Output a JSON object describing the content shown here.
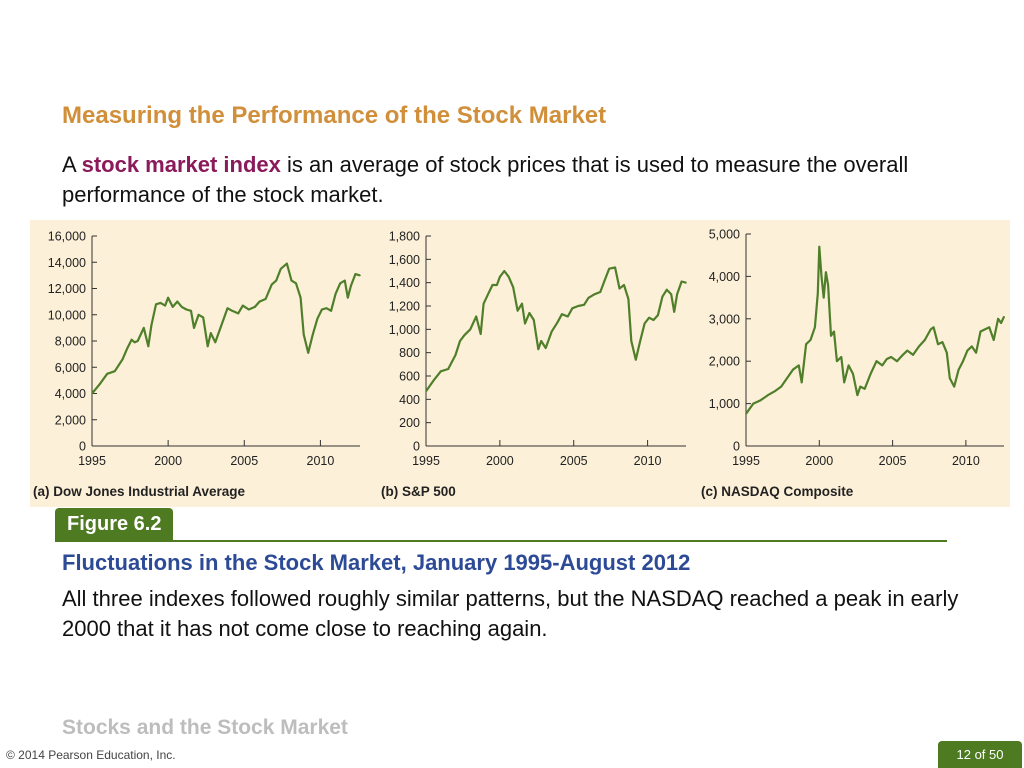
{
  "slide": {
    "title": "Measuring the Performance of the Stock Market",
    "intro_prefix": "A ",
    "intro_term": "stock market index",
    "intro_suffix": " is an average of stock prices that is used to measure the overall performance of the stock market.",
    "figure_badge": "Figure 6.2",
    "figure_title": "Fluctuations in the Stock Market, January 1995-August 2012",
    "figure_caption": "All three indexes followed roughly similar patterns, but the NASDAQ reached a peak in early 2000 that it has not come close to reaching again.",
    "footer_title": "Stocks and the Stock Market",
    "copyright": "© 2014 Pearson Education, Inc.",
    "page_number": "12 of 50"
  },
  "colors": {
    "title": "#d18f3a",
    "term": "#8a1a5a",
    "figure_title": "#2d4a96",
    "accent_green": "#4e7a22",
    "line": "#4f7f2a",
    "panel_bg": "#fcf0d8"
  },
  "chart_data": [
    {
      "type": "line",
      "title": "(a) Dow Jones Industrial Average",
      "xlabel": "",
      "ylabel": "",
      "xlim": [
        1995,
        2012.6
      ],
      "ylim": [
        0,
        16000
      ],
      "x_ticks": [
        1995,
        2000,
        2005,
        2010
      ],
      "x_tick_labels": [
        "1995",
        "2000",
        "2005",
        "2010"
      ],
      "y_ticks": [
        0,
        2000,
        4000,
        6000,
        8000,
        10000,
        12000,
        14000,
        16000
      ],
      "y_tick_labels": [
        "0",
        "2,000",
        "4,000",
        "6,000",
        "8,000",
        "10,000",
        "12,000",
        "14,000",
        "16,000"
      ],
      "grid": false,
      "x": [
        1995.0,
        1995.5,
        1996.0,
        1996.5,
        1997.0,
        1997.3,
        1997.6,
        1997.8,
        1998.0,
        1998.4,
        1998.7,
        1998.9,
        1999.2,
        1999.5,
        1999.8,
        2000.0,
        2000.3,
        2000.6,
        2000.9,
        2001.2,
        2001.5,
        2001.7,
        2002.0,
        2002.3,
        2002.6,
        2002.8,
        2003.1,
        2003.5,
        2003.9,
        2004.2,
        2004.6,
        2004.9,
        2005.3,
        2005.7,
        2006.0,
        2006.4,
        2006.8,
        2007.1,
        2007.4,
        2007.8,
        2008.1,
        2008.4,
        2008.7,
        2008.9,
        2009.2,
        2009.5,
        2009.8,
        2010.1,
        2010.4,
        2010.7,
        2011.0,
        2011.3,
        2011.6,
        2011.8,
        2012.0,
        2012.3,
        2012.6
      ],
      "values": [
        4000,
        4700,
        5500,
        5700,
        6600,
        7400,
        8100,
        7900,
        8000,
        9000,
        7600,
        9200,
        10800,
        10900,
        10700,
        11300,
        10600,
        11000,
        10600,
        10400,
        10300,
        9000,
        10000,
        9800,
        7600,
        8600,
        7900,
        9200,
        10500,
        10300,
        10100,
        10700,
        10400,
        10600,
        11000,
        11200,
        12300,
        12600,
        13500,
        13900,
        12600,
        12400,
        11300,
        8500,
        7100,
        8500,
        9700,
        10400,
        10500,
        10300,
        11600,
        12400,
        12600,
        11300,
        12200,
        13100,
        13000
      ]
    },
    {
      "type": "line",
      "title": "(b) S&P 500",
      "xlabel": "",
      "ylabel": "",
      "xlim": [
        1995,
        2012.6
      ],
      "ylim": [
        0,
        1800
      ],
      "x_ticks": [
        1995,
        2000,
        2005,
        2010
      ],
      "x_tick_labels": [
        "1995",
        "2000",
        "2005",
        "2010"
      ],
      "y_ticks": [
        0,
        200,
        400,
        600,
        800,
        1000,
        1200,
        1400,
        1600,
        1800
      ],
      "y_tick_labels": [
        "0",
        "200",
        "400",
        "600",
        "800",
        "1,000",
        "1,200",
        "1,400",
        "1,600",
        "1,800"
      ],
      "grid": false,
      "x": [
        1995.0,
        1995.5,
        1996.0,
        1996.5,
        1997.0,
        1997.3,
        1997.6,
        1998.0,
        1998.4,
        1998.7,
        1998.9,
        1999.2,
        1999.5,
        1999.8,
        2000.0,
        2000.3,
        2000.6,
        2000.9,
        2001.2,
        2001.5,
        2001.7,
        2002.0,
        2002.3,
        2002.6,
        2002.8,
        2003.1,
        2003.5,
        2003.9,
        2004.2,
        2004.6,
        2004.9,
        2005.3,
        2005.7,
        2006.0,
        2006.4,
        2006.8,
        2007.1,
        2007.4,
        2007.8,
        2008.1,
        2008.4,
        2008.7,
        2008.9,
        2009.2,
        2009.5,
        2009.8,
        2010.1,
        2010.4,
        2010.7,
        2011.0,
        2011.3,
        2011.6,
        2011.8,
        2012.0,
        2012.3,
        2012.6
      ],
      "values": [
        470,
        560,
        640,
        660,
        780,
        900,
        950,
        1000,
        1110,
        960,
        1220,
        1300,
        1380,
        1380,
        1450,
        1500,
        1450,
        1360,
        1160,
        1220,
        1050,
        1140,
        1080,
        830,
        900,
        840,
        980,
        1060,
        1130,
        1110,
        1180,
        1200,
        1210,
        1270,
        1300,
        1320,
        1420,
        1520,
        1530,
        1350,
        1380,
        1260,
        900,
        740,
        900,
        1050,
        1100,
        1080,
        1120,
        1280,
        1340,
        1300,
        1150,
        1300,
        1410,
        1400
      ]
    },
    {
      "type": "line",
      "title": "(c) NASDAQ Composite",
      "xlabel": "",
      "ylabel": "",
      "xlim": [
        1995,
        2012.6
      ],
      "ylim": [
        0,
        5000
      ],
      "x_ticks": [
        1995,
        2000,
        2005,
        2010
      ],
      "x_tick_labels": [
        "1995",
        "2000",
        "2005",
        "2010"
      ],
      "y_ticks": [
        0,
        1000,
        2000,
        3000,
        4000,
        5000
      ],
      "y_tick_labels": [
        "0",
        "1,000",
        "2,000",
        "3,000",
        "4,000",
        "5,000"
      ],
      "grid": false,
      "x": [
        1995.0,
        1995.5,
        1996.0,
        1996.5,
        1997.0,
        1997.4,
        1997.8,
        1998.2,
        1998.6,
        1998.8,
        1999.1,
        1999.4,
        1999.7,
        1999.9,
        2000.0,
        2000.15,
        2000.3,
        2000.45,
        2000.6,
        2000.8,
        2001.0,
        2001.2,
        2001.5,
        2001.7,
        2002.0,
        2002.3,
        2002.6,
        2002.8,
        2003.1,
        2003.5,
        2003.9,
        2004.3,
        2004.6,
        2004.9,
        2005.3,
        2005.7,
        2006.0,
        2006.4,
        2006.8,
        2007.2,
        2007.6,
        2007.8,
        2008.1,
        2008.4,
        2008.7,
        2008.9,
        2009.2,
        2009.5,
        2009.8,
        2010.1,
        2010.4,
        2010.7,
        2011.0,
        2011.3,
        2011.6,
        2011.9,
        2012.2,
        2012.4,
        2012.6
      ],
      "values": [
        760,
        1000,
        1080,
        1200,
        1300,
        1400,
        1600,
        1800,
        1900,
        1500,
        2400,
        2500,
        2800,
        3600,
        4700,
        4000,
        3500,
        4100,
        3800,
        2600,
        2700,
        2000,
        2100,
        1500,
        1900,
        1700,
        1200,
        1400,
        1350,
        1700,
        2000,
        1900,
        2050,
        2100,
        2000,
        2150,
        2250,
        2150,
        2350,
        2500,
        2750,
        2800,
        2400,
        2450,
        2200,
        1600,
        1400,
        1800,
        2000,
        2250,
        2350,
        2200,
        2700,
        2750,
        2800,
        2500,
        3000,
        2900,
        3050
      ]
    }
  ]
}
